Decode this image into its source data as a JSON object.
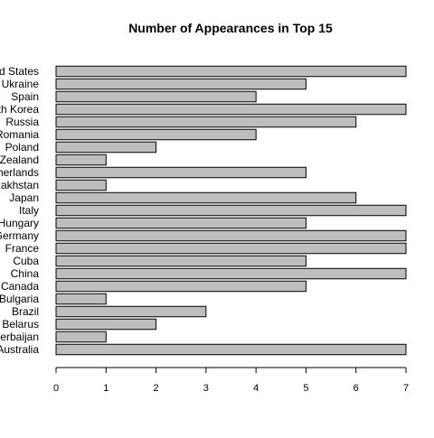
{
  "chart_data": {
    "type": "bar",
    "orientation": "horizontal",
    "title": "Number of Appearances in Top 15",
    "xlabel": "",
    "ylabel": "",
    "categories": [
      "Australia",
      "Azerbaijan",
      "Belarus",
      "Brazil",
      "Bulgaria",
      "Canada",
      "China",
      "Cuba",
      "France",
      "Germany",
      "Hungary",
      "Italy",
      "Japan",
      "Kazakhstan",
      "Netherlands",
      "New Zealand",
      "Poland",
      "Romania",
      "Russia",
      "South Korea",
      "Spain",
      "Ukraine",
      "United States"
    ],
    "values": [
      7,
      1,
      2,
      3,
      1,
      5,
      7,
      5,
      7,
      7,
      5,
      7,
      6,
      1,
      5,
      1,
      2,
      4,
      6,
      7,
      4,
      5,
      7
    ],
    "xlim": [
      0,
      7
    ],
    "xticks": [
      0,
      1,
      2,
      3,
      4,
      5,
      6,
      7
    ],
    "bar_color": "#bebebe",
    "bar_border_color": "#000000",
    "grid": false,
    "legend": "none"
  }
}
